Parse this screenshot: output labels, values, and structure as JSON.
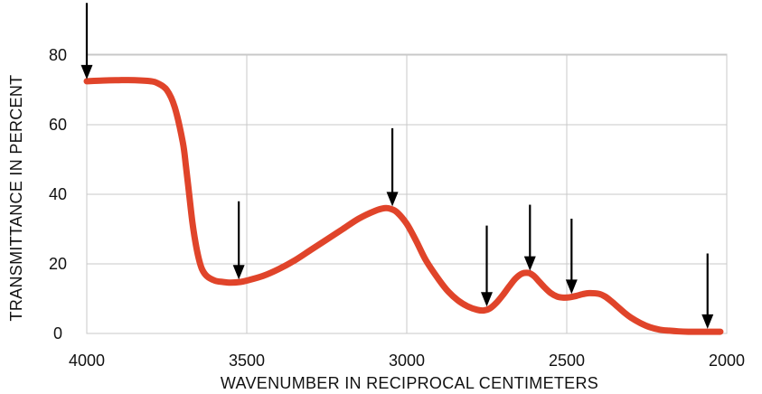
{
  "chart_data": {
    "type": "line",
    "title": "",
    "xlabel": "WAVENUMBER IN RECIPROCAL CENTIMETERS",
    "ylabel": "TRANSMITTANCE IN PERCENT",
    "xlim": [
      4000,
      2000
    ],
    "ylim": [
      0,
      80
    ],
    "x_reversed": true,
    "grid": true,
    "x_ticks": [
      "4000",
      "3500",
      "3000",
      "2500",
      "2000"
    ],
    "y_ticks": [
      "0",
      "20",
      "40",
      "60",
      "80"
    ],
    "line_color": "#e0442a",
    "arrow_color": "#000000",
    "series": [
      {
        "x": [
          4000,
          3950,
          3900,
          3850,
          3800,
          3780,
          3750,
          3725,
          3700,
          3690,
          3680,
          3670,
          3660,
          3650,
          3640,
          3625,
          3600,
          3575,
          3550,
          3520,
          3500,
          3450,
          3400,
          3350,
          3300,
          3250,
          3200,
          3150,
          3100,
          3070,
          3050,
          3030,
          3000,
          2970,
          2940,
          2900,
          2870,
          2840,
          2810,
          2780,
          2760,
          2740,
          2720,
          2700,
          2680,
          2660,
          2640,
          2620,
          2610,
          2600,
          2590,
          2570,
          2550,
          2530,
          2510,
          2490,
          2470,
          2450,
          2430,
          2400,
          2380,
          2360,
          2340,
          2320,
          2300,
          2270,
          2240,
          2210,
          2180,
          2150,
          2120,
          2100,
          2080,
          2060,
          2050,
          2020
        ],
        "y": [
          72.5,
          72.7,
          72.8,
          72.8,
          72.5,
          72,
          70,
          65,
          55,
          48,
          40,
          32,
          26,
          21.5,
          18.5,
          16.5,
          15.2,
          14.8,
          14.6,
          14.8,
          15.2,
          16.5,
          18.5,
          21,
          24,
          27,
          30,
          33,
          35.2,
          36,
          35.8,
          34.8,
          31.5,
          26.5,
          21,
          15.5,
          12,
          9.5,
          7.8,
          6.8,
          6.6,
          7.2,
          8.8,
          11,
          13.5,
          15.8,
          17.2,
          17.4,
          17,
          16.3,
          15.3,
          13.3,
          11.6,
          10.6,
          10.3,
          10.4,
          10.8,
          11.3,
          11.6,
          11.4,
          10.6,
          9.2,
          7.6,
          6,
          4.6,
          3,
          1.8,
          1.1,
          0.8,
          0.6,
          0.5,
          0.5,
          0.5,
          0.5,
          0.5,
          0.5
        ]
      }
    ],
    "arrows": [
      {
        "x": 4000,
        "y_tail": 95,
        "y_tip": 72.5
      },
      {
        "x": 3525,
        "y_tail": 38,
        "y_tip": 15
      },
      {
        "x": 3045,
        "y_tail": 59,
        "y_tip": 36
      },
      {
        "x": 2750,
        "y_tail": 31,
        "y_tip": 7.2
      },
      {
        "x": 2615,
        "y_tail": 37,
        "y_tip": 17.5
      },
      {
        "x": 2485,
        "y_tail": 33,
        "y_tip": 10.8
      },
      {
        "x": 2060,
        "y_tail": 23,
        "y_tip": 0.8
      }
    ]
  }
}
